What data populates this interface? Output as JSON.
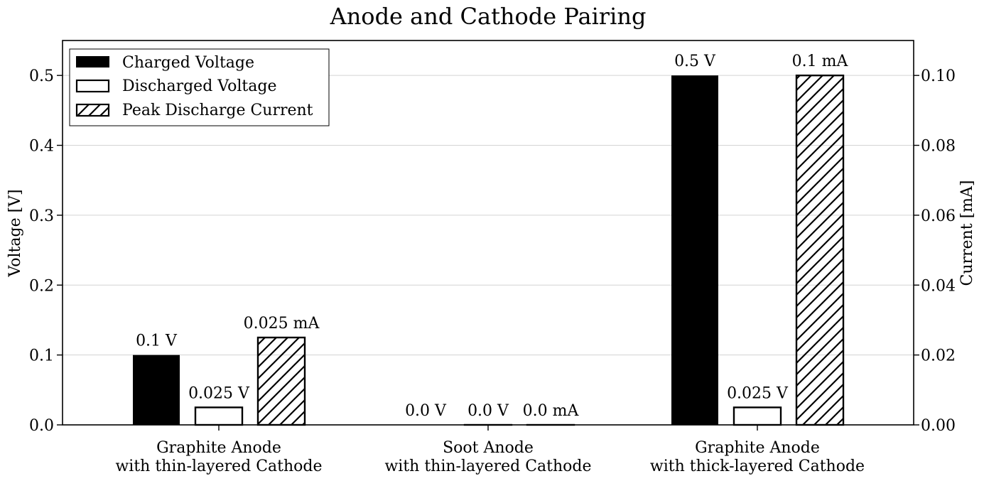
{
  "chart_data": {
    "type": "bar",
    "title": "Anode and Cathode Pairing",
    "categories": [
      [
        "Graphite Anode",
        "with thin-layered Cathode"
      ],
      [
        "Soot Anode",
        "with thin-layered Cathode"
      ],
      [
        "Graphite Anode",
        "with thick-layered Cathode"
      ]
    ],
    "series": [
      {
        "name": "Charged Voltage",
        "axis": "left",
        "style": "solid",
        "values": [
          0.1,
          0.0,
          0.5
        ],
        "labels": [
          "0.1 V",
          "0.0 V",
          "0.5 V"
        ]
      },
      {
        "name": "Discharged Voltage",
        "axis": "left",
        "style": "outline",
        "values": [
          0.025,
          0.0,
          0.025
        ],
        "labels": [
          "0.025 V",
          "0.0 V",
          "0.025 V"
        ]
      },
      {
        "name": "Peak Discharge Current",
        "axis": "right",
        "style": "hatch",
        "values": [
          0.025,
          0.0,
          0.1
        ],
        "labels": [
          "0.025 mA",
          "0.0 mA",
          "0.1 mA"
        ]
      }
    ],
    "ylabel": "Voltage [V]",
    "ylim": [
      0,
      0.55
    ],
    "yticks": [
      "0.0",
      "0.1",
      "0.2",
      "0.3",
      "0.4",
      "0.5"
    ],
    "y2label": "Current [mA]",
    "y2lim": [
      0,
      0.11
    ],
    "y2ticks": [
      "0.00",
      "0.02",
      "0.04",
      "0.06",
      "0.08",
      "0.10"
    ],
    "grid": true,
    "legend_position": "top-left",
    "colors": {
      "bar": "#000000",
      "background": "#ffffff",
      "grid": "#d3d3d3"
    }
  }
}
